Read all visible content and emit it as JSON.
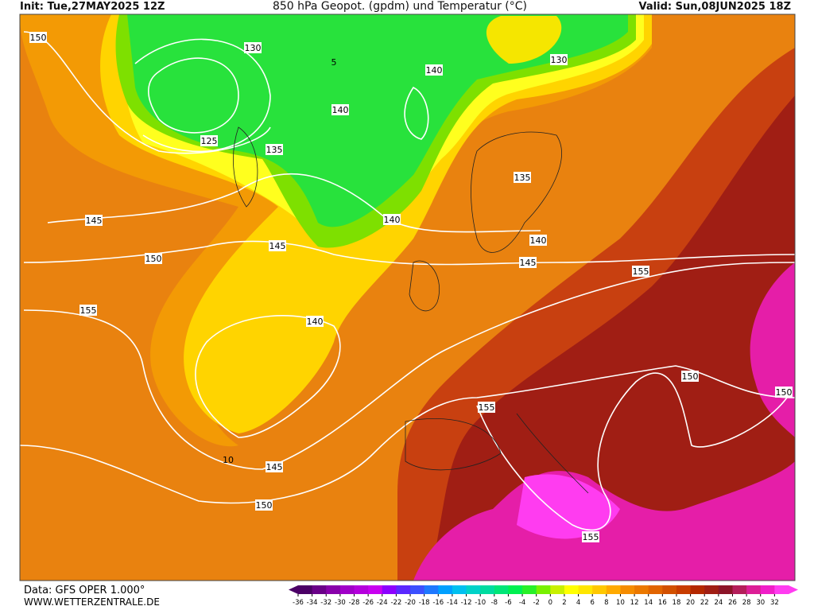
{
  "header": {
    "init": "Init: Tue,27MAY2025 12Z",
    "title": "850 hPa Geopot. (gpdm) und Temperatur (°C)",
    "valid": "Valid: Sun,08JUN2025 18Z"
  },
  "footer": {
    "source": "Data: GFS OPER 1.000°",
    "site": "WWW.WETTERZENTRALE.DE"
  },
  "colorbar": {
    "ticks": [
      -36,
      -34,
      -32,
      -30,
      -28,
      -26,
      -24,
      -22,
      -20,
      -18,
      -16,
      -14,
      -12,
      -10,
      -8,
      -6,
      -4,
      -2,
      0,
      2,
      4,
      6,
      8,
      10,
      12,
      14,
      16,
      18,
      20,
      22,
      24,
      26,
      28,
      30,
      32
    ],
    "colors": [
      "#4b0066",
      "#6a0088",
      "#8800aa",
      "#a000c8",
      "#b400dc",
      "#c800f0",
      "#8c00ff",
      "#5a28ff",
      "#3c50ff",
      "#1e78ff",
      "#00a0ff",
      "#00c0f0",
      "#00d2c8",
      "#00dca0",
      "#00e678",
      "#00f050",
      "#28f028",
      "#78f000",
      "#c8f000",
      "#ffff00",
      "#ffe600",
      "#ffc800",
      "#ffaa00",
      "#f58c00",
      "#eb7800",
      "#e16400",
      "#d25000",
      "#c83c00",
      "#b42800",
      "#a01e14",
      "#8c1428",
      "#b41e5a",
      "#dc1e96",
      "#f01ec8",
      "#ff3cf0"
    ]
  },
  "contour_labels": [
    "150",
    "130",
    "130",
    "140",
    "140",
    "125",
    "135",
    "140",
    "135",
    "145",
    "140",
    "145",
    "150",
    "145",
    "155",
    "140",
    "155",
    "155",
    "150",
    "150",
    "145",
    "150",
    "155",
    "5",
    "10"
  ]
}
